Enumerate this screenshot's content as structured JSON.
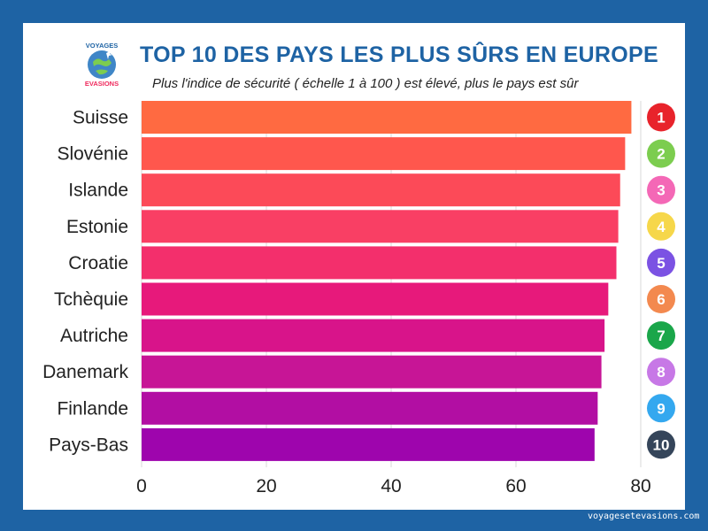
{
  "header": {
    "logo_text_top": "VOYAGES",
    "logo_text_bottom": "EVASIONS",
    "title": "TOP 10 DES PAYS LES PLUS SÛRS EN EUROPE",
    "subtitle": "Plus l'indice de sécurité ( échelle 1 à 100 ) est élevé, plus le pays est sûr"
  },
  "footer": {
    "site": "voyagesetevasions.com"
  },
  "chart_data": {
    "type": "bar",
    "orientation": "horizontal",
    "categories": [
      "Suisse",
      "Slovénie",
      "Islande",
      "Estonie",
      "Croatie",
      "Tchèquie",
      "Autriche",
      "Danemark",
      "Finlande",
      "Pays-Bas"
    ],
    "values": [
      78.5,
      77.5,
      76.7,
      76.4,
      76.1,
      74.8,
      74.2,
      73.7,
      73.1,
      72.6
    ],
    "ranks": [
      "1",
      "2",
      "3",
      "4",
      "5",
      "6",
      "7",
      "8",
      "9",
      "10"
    ],
    "rank_colors": [
      "#e8232b",
      "#7ccd4f",
      "#f468b6",
      "#f6d74a",
      "#7b52e3",
      "#f3894f",
      "#1aa64a",
      "#c778e6",
      "#34a8ef",
      "#35455a"
    ],
    "bar_colors": [
      "#ff6a41",
      "#ff574d",
      "#fc4a58",
      "#f93f64",
      "#f32f6c",
      "#e7197b",
      "#d8148a",
      "#c71596",
      "#b20ea3",
      "#9e05ad"
    ],
    "xlim": [
      0,
      80
    ],
    "xticks": [
      "0",
      "20",
      "40",
      "60",
      "80"
    ],
    "grid": true
  }
}
